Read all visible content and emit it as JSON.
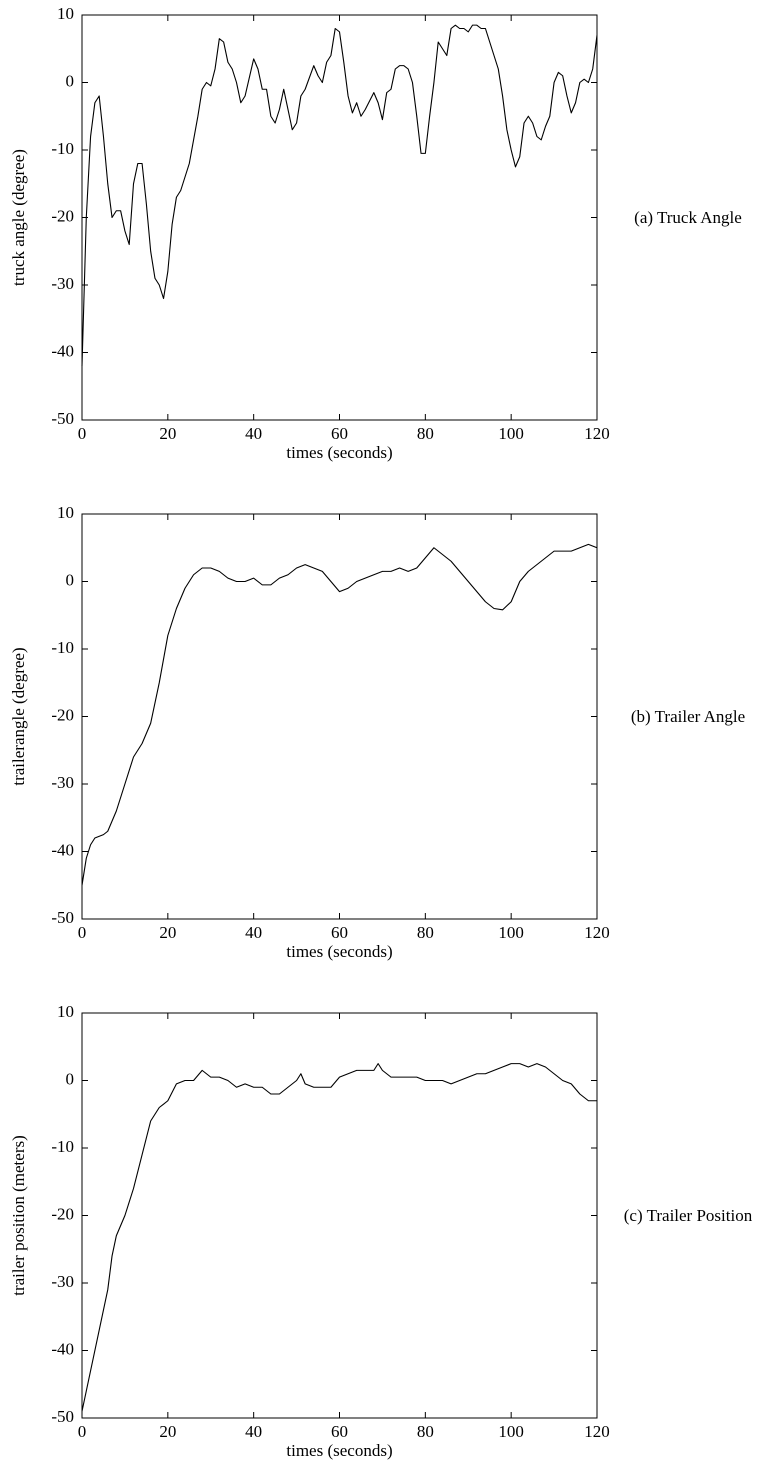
{
  "chart_data": [
    {
      "type": "line",
      "xlabel": "times (seconds)",
      "ylabel": "truck angle (degree)",
      "caption": "(a) Truck Angle",
      "color": "#000000",
      "xlim": [
        0,
        120
      ],
      "ylim": [
        -50,
        10
      ],
      "xticks": [
        0,
        20,
        40,
        60,
        80,
        100,
        120
      ],
      "yticks": [
        -50,
        -40,
        -30,
        -20,
        -10,
        0,
        10
      ],
      "x": [
        0,
        1,
        2,
        3,
        4,
        5,
        6,
        7,
        8,
        9,
        10,
        11,
        12,
        13,
        14,
        15,
        16,
        17,
        18,
        19,
        20,
        21,
        22,
        23,
        25,
        27,
        28,
        29,
        30,
        31,
        32,
        33,
        34,
        35,
        36,
        37,
        38,
        40,
        41,
        42,
        43,
        44,
        45,
        46,
        47,
        48,
        49,
        50,
        51,
        52,
        54,
        55,
        56,
        57,
        58,
        59,
        60,
        61,
        62,
        63,
        64,
        65,
        66,
        68,
        69,
        70,
        71,
        72,
        73,
        74,
        75,
        76,
        77,
        78,
        79,
        80,
        81,
        82,
        83,
        84,
        85,
        86,
        87,
        88,
        89,
        90,
        91,
        92,
        93,
        94,
        95,
        96,
        97,
        98,
        99,
        100,
        101,
        102,
        103,
        104,
        105,
        106,
        107,
        108,
        109,
        110,
        111,
        112,
        113,
        114,
        115,
        116,
        117,
        118,
        119,
        120
      ],
      "values": [
        -42,
        -20,
        -8,
        -3,
        -2,
        -8,
        -15,
        -20,
        -19,
        -19,
        -22,
        -24,
        -15,
        -12,
        -12,
        -18,
        -25,
        -29,
        -30,
        -32,
        -28,
        -21,
        -17,
        -16,
        -12,
        -5,
        -1,
        0,
        -0.5,
        2,
        6.5,
        6,
        3,
        2,
        0,
        -3,
        -2,
        3.5,
        2,
        -1,
        -1,
        -5,
        -6,
        -4,
        -1,
        -4,
        -7,
        -6,
        -2,
        -1,
        2.5,
        1,
        0,
        3,
        4,
        8,
        7.5,
        3,
        -2,
        -4.5,
        -3,
        -5,
        -4,
        -1.5,
        -3,
        -5.5,
        -1.5,
        -1,
        2,
        2.5,
        2.5,
        2,
        0,
        -5,
        -10.5,
        -10.5,
        -5,
        0,
        6,
        5,
        4,
        8,
        8.5,
        8,
        8,
        7.5,
        8.5,
        8.5,
        8,
        8,
        6,
        4,
        2,
        -2,
        -7,
        -10,
        -12.5,
        -11,
        -6,
        -5,
        -6,
        -8,
        -8.5,
        -6.5,
        -5,
        0,
        1.5,
        1,
        -2,
        -4.5,
        -3,
        0,
        0.5,
        0,
        2,
        7
      ]
    },
    {
      "type": "line",
      "xlabel": "times (seconds)",
      "ylabel": "trailerangle (degree)",
      "caption": "(b) Trailer Angle",
      "color": "#000000",
      "xlim": [
        0,
        120
      ],
      "ylim": [
        -50,
        10
      ],
      "xticks": [
        0,
        20,
        40,
        60,
        80,
        100,
        120
      ],
      "yticks": [
        -50,
        -40,
        -30,
        -20,
        -10,
        0,
        10
      ],
      "x": [
        0,
        1,
        2,
        3,
        5,
        6,
        8,
        10,
        12,
        14,
        16,
        18,
        20,
        22,
        24,
        26,
        28,
        30,
        32,
        34,
        36,
        38,
        40,
        42,
        44,
        46,
        48,
        50,
        52,
        54,
        56,
        58,
        60,
        62,
        64,
        66,
        68,
        70,
        72,
        74,
        76,
        78,
        80,
        82,
        84,
        86,
        88,
        90,
        92,
        94,
        96,
        98,
        100,
        102,
        104,
        106,
        108,
        110,
        112,
        114,
        116,
        118,
        120
      ],
      "values": [
        -45,
        -41,
        -39,
        -38,
        -37.5,
        -37,
        -34,
        -30,
        -26,
        -24,
        -21,
        -15,
        -8,
        -4,
        -1,
        1,
        2,
        2,
        1.5,
        0.5,
        0,
        0,
        0.5,
        -0.5,
        -0.5,
        0.5,
        1,
        2,
        2.5,
        2,
        1.5,
        0,
        -1.5,
        -1,
        0,
        0.5,
        1,
        1.5,
        1.5,
        2,
        1.5,
        2,
        3.5,
        5,
        4,
        3,
        1.5,
        0,
        -1.5,
        -3,
        -4,
        -4.2,
        -3,
        0,
        1.5,
        2.5,
        3.5,
        4.5,
        4.5,
        4.5,
        5,
        5.5,
        5
      ]
    },
    {
      "type": "line",
      "xlabel": "times (seconds)",
      "ylabel": "trailer position (meters)",
      "caption": "(c) Trailer Position",
      "color": "#000000",
      "xlim": [
        0,
        120
      ],
      "ylim": [
        -50,
        10
      ],
      "xticks": [
        0,
        20,
        40,
        60,
        80,
        100,
        120
      ],
      "yticks": [
        -50,
        -40,
        -30,
        -20,
        -10,
        0,
        10
      ],
      "x": [
        0,
        1,
        2,
        4,
        6,
        7,
        8,
        10,
        12,
        14,
        16,
        18,
        19,
        20,
        22,
        24,
        26,
        28,
        30,
        32,
        34,
        36,
        38,
        40,
        42,
        44,
        46,
        48,
        50,
        51,
        52,
        54,
        56,
        58,
        60,
        62,
        64,
        66,
        68,
        69,
        70,
        72,
        74,
        76,
        78,
        80,
        82,
        84,
        86,
        88,
        90,
        92,
        94,
        96,
        98,
        100,
        102,
        104,
        106,
        108,
        110,
        112,
        114,
        116,
        118,
        120
      ],
      "values": [
        -49,
        -46,
        -43,
        -37,
        -31,
        -26,
        -23,
        -20,
        -16,
        -11,
        -6,
        -4,
        -3.5,
        -3,
        -0.5,
        0,
        0,
        1.5,
        0.5,
        0.5,
        0,
        -1,
        -0.5,
        -1,
        -1,
        -2,
        -2,
        -1,
        0,
        1,
        -0.5,
        -1,
        -1,
        -1,
        0.5,
        1,
        1.5,
        1.5,
        1.5,
        2.5,
        1.5,
        0.5,
        0.5,
        0.5,
        0.5,
        0,
        0,
        0,
        -0.5,
        0,
        0.5,
        1,
        1,
        1.5,
        2,
        2.5,
        2.5,
        2,
        2.5,
        2,
        1,
        0,
        -0.5,
        -2,
        -3,
        -3
      ]
    }
  ]
}
